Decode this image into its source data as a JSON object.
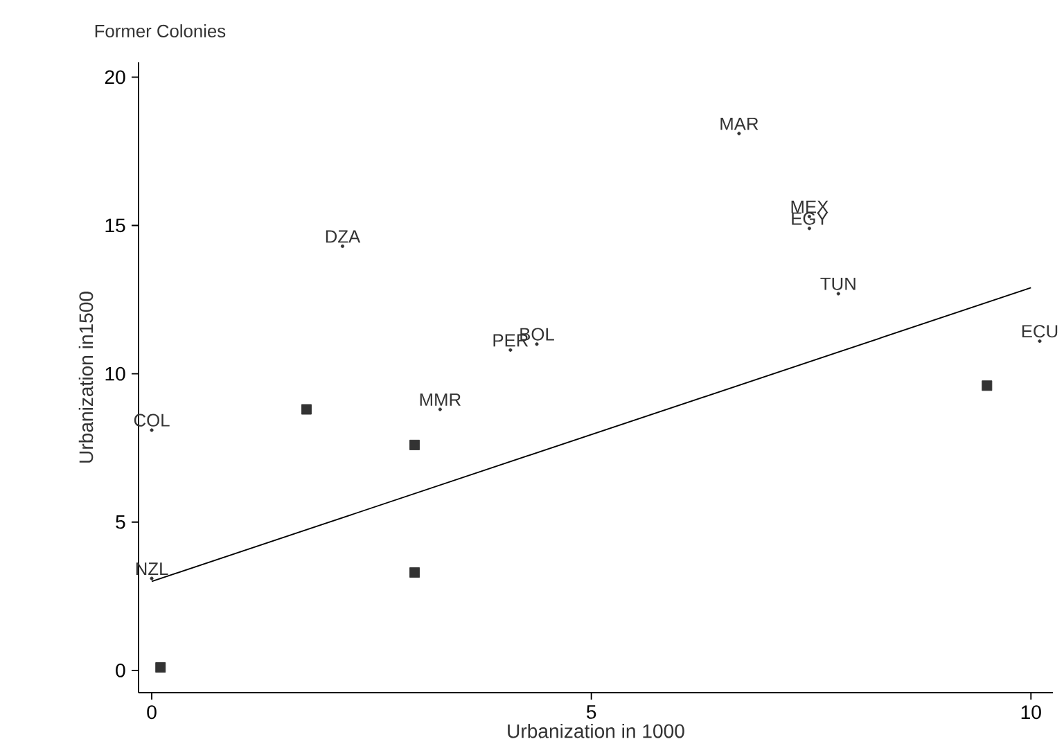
{
  "chart_data": {
    "type": "scatter",
    "title": "Former Colonies",
    "xlabel": "Urbanization in 1000",
    "ylabel": "Urbanization in1500",
    "xlim": [
      -0.15,
      10.25
    ],
    "ylim": [
      -0.75,
      20.5
    ],
    "xticks": [
      0,
      5,
      10
    ],
    "yticks": [
      0,
      5,
      10,
      15,
      20
    ],
    "grid": false,
    "legend": false,
    "series": [
      {
        "type": "scatter",
        "marker": "circle",
        "color": "#333333",
        "x": [
          0.0,
          0.0,
          3.28,
          2.17,
          4.08,
          4.38,
          6.68,
          7.48,
          7.48,
          7.81,
          10.1
        ],
        "values": [
          8.1,
          3.1,
          8.8,
          14.3,
          10.8,
          11.0,
          18.1,
          15.3,
          14.9,
          12.7,
          11.1
        ],
        "value_labels": [
          "COL",
          "NZL",
          "MMR",
          "DZA",
          "PER",
          "BOL",
          "MAR",
          "MEX",
          "EGY",
          "TUN",
          "ECU"
        ]
      },
      {
        "type": "scatter",
        "marker": "square",
        "color": "#333333",
        "x": [
          0.1,
          1.76,
          2.99,
          2.99,
          9.5
        ],
        "values": [
          0.1,
          8.8,
          7.6,
          3.3,
          9.6
        ]
      },
      {
        "type": "line",
        "marker": "none",
        "line_style": "solid",
        "color": "#000000",
        "x": [
          0,
          10
        ],
        "values": [
          3.0,
          12.9
        ]
      }
    ]
  }
}
